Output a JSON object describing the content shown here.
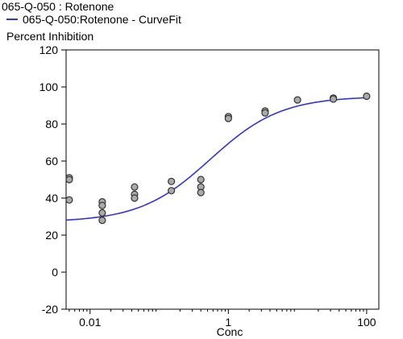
{
  "chart_data": {
    "type": "scatter",
    "title_line": "065-Q-050  : Rotenone",
    "legend": [
      {
        "name": "065-Q-050:Rotenone - CurveFit",
        "color": "#3333dd",
        "marker": "line"
      }
    ],
    "ylabel": "Percent Inhibition",
    "xlabel": "Conc",
    "x_scale": "log",
    "xlim": [
      0.0045,
      150
    ],
    "ylim": [
      -20,
      120
    ],
    "x_ticks": [
      {
        "value": 0.01,
        "label": "0.01"
      },
      {
        "value": 1,
        "label": "1"
      },
      {
        "value": 100,
        "label": "100"
      }
    ],
    "y_ticks": [
      {
        "value": -20,
        "label": "-20"
      },
      {
        "value": 0,
        "label": "0"
      },
      {
        "value": 20,
        "label": "20"
      },
      {
        "value": 40,
        "label": "40"
      },
      {
        "value": 60,
        "label": "60"
      },
      {
        "value": 80,
        "label": "80"
      },
      {
        "value": 100,
        "label": "100"
      },
      {
        "value": 120,
        "label": "120"
      }
    ],
    "grid": false,
    "series": [
      {
        "type": "scatter",
        "points": [
          {
            "x": 0.005,
            "y": 51
          },
          {
            "x": 0.005,
            "y": 50
          },
          {
            "x": 0.005,
            "y": 39
          },
          {
            "x": 0.015,
            "y": 38
          },
          {
            "x": 0.015,
            "y": 36
          },
          {
            "x": 0.015,
            "y": 32
          },
          {
            "x": 0.015,
            "y": 28
          },
          {
            "x": 0.044,
            "y": 46
          },
          {
            "x": 0.044,
            "y": 42
          },
          {
            "x": 0.044,
            "y": 40
          },
          {
            "x": 0.15,
            "y": 49
          },
          {
            "x": 0.15,
            "y": 44
          },
          {
            "x": 0.4,
            "y": 50
          },
          {
            "x": 0.4,
            "y": 46
          },
          {
            "x": 0.4,
            "y": 43
          },
          {
            "x": 1.0,
            "y": 84
          },
          {
            "x": 1.0,
            "y": 83
          },
          {
            "x": 3.4,
            "y": 87
          },
          {
            "x": 3.4,
            "y": 86
          },
          {
            "x": 10,
            "y": 93
          },
          {
            "x": 33,
            "y": 94
          },
          {
            "x": 33,
            "y": 93.5
          },
          {
            "x": 100,
            "y": 95
          }
        ]
      },
      {
        "name": "065-Q-050:Rotenone - CurveFit",
        "type": "line",
        "color": "#3333dd",
        "model": "four-parameter logistic",
        "bottom": 27,
        "top": 95,
        "ec50": 0.55,
        "hill": 0.85,
        "x_range": [
          0.0045,
          100
        ]
      }
    ]
  }
}
